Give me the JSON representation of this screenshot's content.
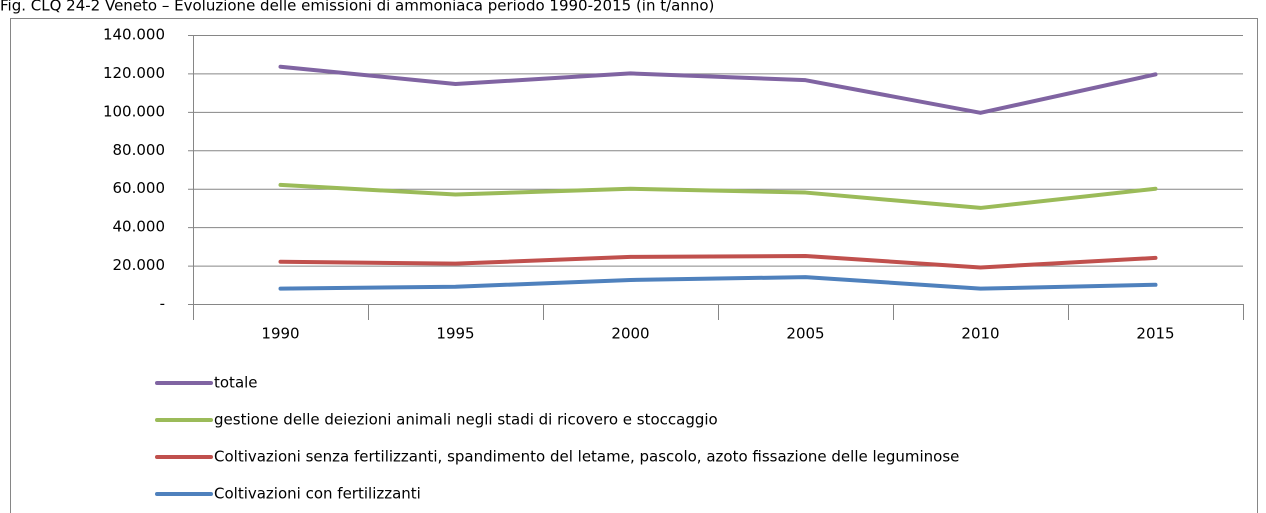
{
  "chart_data": {
    "type": "line",
    "title": "Fig. CLQ 24-2 Veneto – Evoluzione delle emissioni di ammoniaca periodo 1990-2015 (in t/anno)",
    "categories": [
      "1990",
      "1995",
      "2000",
      "2005",
      "2010",
      "2015"
    ],
    "series": [
      {
        "name": "totale",
        "color": "#8064a2",
        "values": [
          123500,
          114500,
          120000,
          116500,
          99500,
          119500
        ]
      },
      {
        "name": "gestione delle deiezioni animali negli stadi di ricovero e stoccaggio",
        "color": "#9bbb59",
        "values": [
          62000,
          57000,
          60000,
          58000,
          50000,
          60000
        ]
      },
      {
        "name": "Coltivazioni senza fertilizzanti, spandimento del letame, pascolo, azoto fissazione delle leguminose",
        "color": "#c0504d",
        "values": [
          22000,
          21000,
          24500,
          25000,
          19000,
          24000
        ]
      },
      {
        "name": "Coltivazioni con fertilizzanti",
        "color": "#4f81bd",
        "values": [
          8000,
          9000,
          12500,
          14000,
          8000,
          10000
        ]
      }
    ],
    "ylim": [
      0,
      140000
    ],
    "yticks": [
      {
        "value": 0,
        "label": "-"
      },
      {
        "value": 20000,
        "label": "20.000"
      },
      {
        "value": 40000,
        "label": "40.000"
      },
      {
        "value": 60000,
        "label": "60.000"
      },
      {
        "value": 80000,
        "label": "80.000"
      },
      {
        "value": 100000,
        "label": "100.000"
      },
      {
        "value": 120000,
        "label": "120.000"
      },
      {
        "value": 140000,
        "label": "140.000"
      }
    ],
    "grid": true,
    "legend": "bottom"
  }
}
